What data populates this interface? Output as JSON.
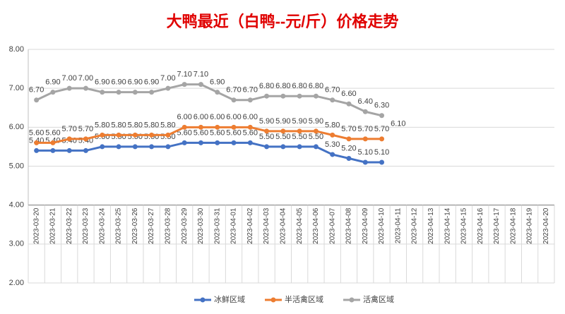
{
  "chart_data": {
    "type": "line",
    "title": "大鸭最近（白鸭--元/斤）价格走势",
    "categories": [
      "2023-03-20",
      "2023-03-21",
      "2023-03-22",
      "2023-03-23",
      "2023-03-24",
      "2023-03-25",
      "2023-03-26",
      "2023-03-27",
      "2023-03-28",
      "2023-03-29",
      "2023-03-30",
      "2023-03-31",
      "2023-04-01",
      "2023-04-02",
      "2023-04-03",
      "2023-04-04",
      "2023-04-05",
      "2023-04-06",
      "2023-04-07",
      "2023-04-08",
      "2023-04-09",
      "2023-04-10",
      "2023-04-11",
      "2023-04-12",
      "2023-04-13",
      "2023-04-14",
      "2023-04-15",
      "2023-04-16",
      "2023-04-17",
      "2023-04-18",
      "2023-04-19",
      "2023-04-20"
    ],
    "series": [
      {
        "name": "冰鲜区域",
        "color": "#4472c4",
        "values": [
          5.4,
          5.4,
          5.4,
          5.4,
          5.5,
          5.5,
          5.5,
          5.5,
          5.5,
          5.6,
          5.6,
          5.6,
          5.6,
          5.6,
          5.5,
          5.5,
          5.5,
          5.5,
          5.3,
          5.2,
          5.1,
          5.1,
          null,
          null,
          null,
          null,
          null,
          null,
          null,
          null,
          null,
          null
        ],
        "value_labels": [
          "5.40",
          "5.40",
          "5.40",
          "5.40",
          "5.50",
          "5.50",
          "5.50",
          "5.50",
          "5.50",
          "5.60",
          "5.60",
          "5.60",
          "5.60",
          "5.60",
          "5.50",
          "5.50",
          "5.50",
          "5.50",
          "5.30",
          "5.20",
          "5.10",
          "5.10",
          null,
          null,
          null,
          null,
          null,
          null,
          null,
          null,
          null,
          null
        ]
      },
      {
        "name": "半活禽区域",
        "color": "#ed7d31",
        "values": [
          5.6,
          5.6,
          5.7,
          5.7,
          5.8,
          5.8,
          5.8,
          5.8,
          5.8,
          6.0,
          6.0,
          6.0,
          6.0,
          6.0,
          5.9,
          5.9,
          5.9,
          5.9,
          5.8,
          5.7,
          5.7,
          5.7,
          null,
          null,
          null,
          null,
          null,
          null,
          null,
          null,
          null,
          null
        ],
        "value_labels": [
          "5.60",
          "5.60",
          "5.70",
          "5.70",
          "5.80",
          "5.80",
          "5.80",
          "5.80",
          "5.80",
          "6.00",
          "6.00",
          "6.00",
          "6.00",
          "6.00",
          "5.90",
          "5.90",
          "5.90",
          "5.90",
          "5.80",
          "5.70",
          "5.70",
          "5.70",
          null,
          null,
          null,
          null,
          null,
          null,
          null,
          null,
          null,
          null
        ]
      },
      {
        "name": "活禽区域",
        "color": "#a5a5a5",
        "values": [
          6.7,
          6.9,
          7.0,
          7.0,
          6.9,
          6.9,
          6.9,
          6.9,
          7.0,
          7.1,
          7.1,
          6.9,
          6.7,
          6.7,
          6.8,
          6.8,
          6.8,
          6.8,
          6.7,
          6.6,
          6.4,
          6.3,
          null,
          null,
          null,
          null,
          null,
          null,
          null,
          null,
          null,
          null
        ],
        "value_labels": [
          "6.70",
          "6.90",
          "7.00",
          "7.00",
          "6.90",
          "6.90",
          "6.90",
          "6.90",
          "7.00",
          "7.10",
          "7.10",
          "6.90",
          "6.70",
          "6.70",
          "6.80",
          "6.80",
          "6.80",
          "6.80",
          "6.70",
          "6.60",
          "6.40",
          "6.30",
          null,
          null,
          null,
          null,
          null,
          null,
          null,
          null,
          null,
          null
        ]
      }
    ],
    "annotations": [
      "6.10"
    ],
    "ylim": [
      2,
      8
    ],
    "yticks": [
      {
        "value": 2,
        "label": "2.00"
      },
      {
        "value": 3,
        "label": "3.00"
      },
      {
        "value": 4,
        "label": "4.00"
      },
      {
        "value": 5,
        "label": "5.00"
      },
      {
        "value": 6,
        "label": "6.00"
      },
      {
        "value": 7,
        "label": "7.00"
      },
      {
        "value": 8,
        "label": "8.00"
      }
    ],
    "xaxis_at": 4,
    "grid": true,
    "legend": "bottom"
  }
}
